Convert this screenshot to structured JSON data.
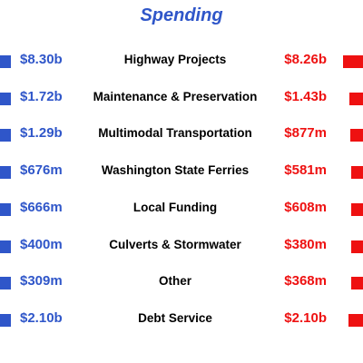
{
  "title": "Spending",
  "colors": {
    "left": "#2f56c9",
    "right": "#ee1111",
    "title": "#2f56c9"
  },
  "chart_data": {
    "type": "bar",
    "title": "Spending",
    "categories": [
      "Highway Projects",
      "Maintenance & Preservation",
      "Multimodal Transportation",
      "Washington State Ferries",
      "Local Funding",
      "Culverts & Stormwater",
      "Other",
      "Debt Service"
    ],
    "series": [
      {
        "labels": [
          "$8.30b",
          "$1.72b",
          "$1.29b",
          "$676m",
          "$666m",
          "$400m",
          "$309m",
          "$2.10b"
        ],
        "values": [
          8300,
          1720,
          1290,
          676,
          666,
          400,
          309,
          2100
        ]
      },
      {
        "labels": [
          "$8.26b",
          "$1.43b",
          "$877m",
          "$581m",
          "$608m",
          "$380m",
          "$368m",
          "$2.10b"
        ],
        "values": [
          8260,
          1430,
          877,
          581,
          608,
          380,
          368,
          2100
        ]
      }
    ]
  }
}
